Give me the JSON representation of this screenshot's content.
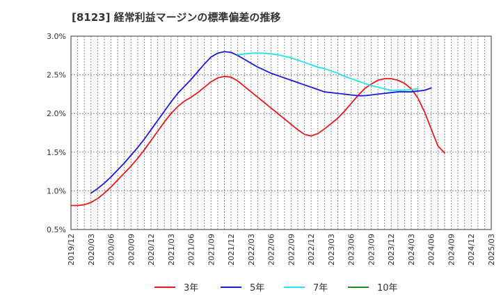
{
  "chart_data": {
    "type": "line",
    "title": "[8123]  経常利益マージンの標準偏差の推移",
    "xlabel": "",
    "ylabel": "",
    "x_ticks": [
      "2019/12",
      "2020/03",
      "2020/06",
      "2020/09",
      "2020/12",
      "2021/03",
      "2021/06",
      "2021/09",
      "2021/12",
      "2022/03",
      "2022/06",
      "2022/09",
      "2022/12",
      "2023/03",
      "2023/06",
      "2023/09",
      "2023/12",
      "2024/03",
      "2024/06",
      "2024/09",
      "2024/12",
      "2025/03"
    ],
    "y_ticks": [
      "0.5%",
      "1.0%",
      "1.5%",
      "2.0%",
      "2.5%",
      "3.0%"
    ],
    "ylim": [
      0.5,
      3.0
    ],
    "grid": true,
    "legend_position": "bottom",
    "series": [
      {
        "name": "3年",
        "color": "#e8191c",
        "values": [
          0.81,
          0.81,
          0.82,
          0.85,
          0.9,
          0.97,
          1.05,
          1.14,
          1.23,
          1.32,
          1.42,
          1.53,
          1.65,
          1.77,
          1.89,
          2.0,
          2.09,
          2.16,
          2.21,
          2.27,
          2.34,
          2.41,
          2.46,
          2.48,
          2.47,
          2.42,
          2.35,
          2.28,
          2.21,
          2.14,
          2.07,
          2.0,
          1.93,
          1.86,
          1.79,
          1.73,
          1.71,
          1.74,
          1.8,
          1.87,
          1.94,
          2.03,
          2.13,
          2.23,
          2.32,
          2.38,
          2.43,
          2.45,
          2.45,
          2.43,
          2.39,
          2.32,
          2.2,
          2.02,
          1.8,
          1.58,
          1.49
        ]
      },
      {
        "name": "5年",
        "color": "#1a1adb",
        "values": [
          null,
          null,
          null,
          0.97,
          1.03,
          1.1,
          1.18,
          1.27,
          1.36,
          1.46,
          1.56,
          1.67,
          1.79,
          1.91,
          2.03,
          2.15,
          2.26,
          2.35,
          2.44,
          2.54,
          2.64,
          2.73,
          2.78,
          2.8,
          2.79,
          2.75,
          2.7,
          2.65,
          2.6,
          2.56,
          2.52,
          2.49,
          2.46,
          2.43,
          2.4,
          2.37,
          2.34,
          2.31,
          2.28,
          2.27,
          2.26,
          2.25,
          2.24,
          2.23,
          2.23,
          2.24,
          2.25,
          2.26,
          2.27,
          2.28,
          2.28,
          2.28,
          2.29,
          2.3,
          2.33
        ]
      },
      {
        "name": "7年",
        "color": "#22e4ee",
        "values": [
          null,
          null,
          null,
          null,
          null,
          null,
          null,
          null,
          null,
          null,
          null,
          null,
          null,
          null,
          null,
          null,
          null,
          null,
          null,
          null,
          null,
          null,
          null,
          null,
          null,
          2.76,
          2.77,
          2.78,
          2.78,
          2.78,
          2.77,
          2.76,
          2.74,
          2.72,
          2.69,
          2.66,
          2.63,
          2.6,
          2.58,
          2.55,
          2.52,
          2.48,
          2.45,
          2.42,
          2.39,
          2.36,
          2.34,
          2.32,
          2.3,
          2.3,
          2.3,
          2.31,
          2.32
        ]
      },
      {
        "name": "10年",
        "color": "#1e8c1e",
        "values": []
      }
    ]
  }
}
